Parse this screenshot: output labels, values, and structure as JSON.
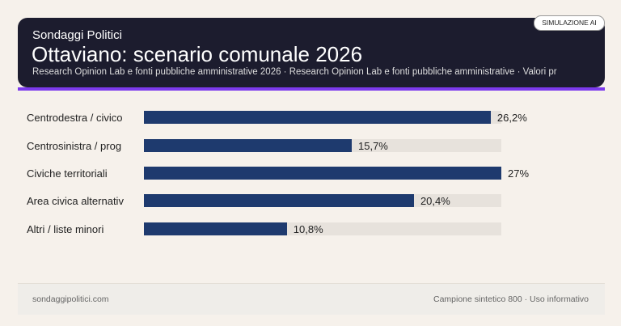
{
  "header": {
    "kicker": "Sondaggi Politici",
    "title": "Ottaviano: scenario comunale 2026",
    "subtitle": "Research Opinion Lab e fonti pubbliche amministrative 2026 · Research Opinion Lab e fonti pubbliche amministrative · Valori pr",
    "badge": "SIMULAZIONE AI"
  },
  "colors": {
    "bar": "#1e3a6e",
    "track": "#e7e2dc",
    "accent": "#7c3aed",
    "header_bg": "#1c1c2e"
  },
  "chart_data": {
    "type": "bar",
    "orientation": "horizontal",
    "categories": [
      "Centrodestra / civico",
      "Centrosinistra / prog",
      "Civiche territoriali",
      "Area civica alternativ",
      "Altri / liste minori"
    ],
    "values": [
      26.2,
      15.7,
      27,
      20.4,
      10.8
    ],
    "value_labels": [
      "26,2%",
      "15,7%",
      "27%",
      "20,4%",
      "10,8%"
    ],
    "xlim": [
      0,
      27
    ],
    "grid": false
  },
  "footer": {
    "left": "sondaggipolitici.com",
    "right": "Campione sintetico 800 · Uso informativo"
  }
}
